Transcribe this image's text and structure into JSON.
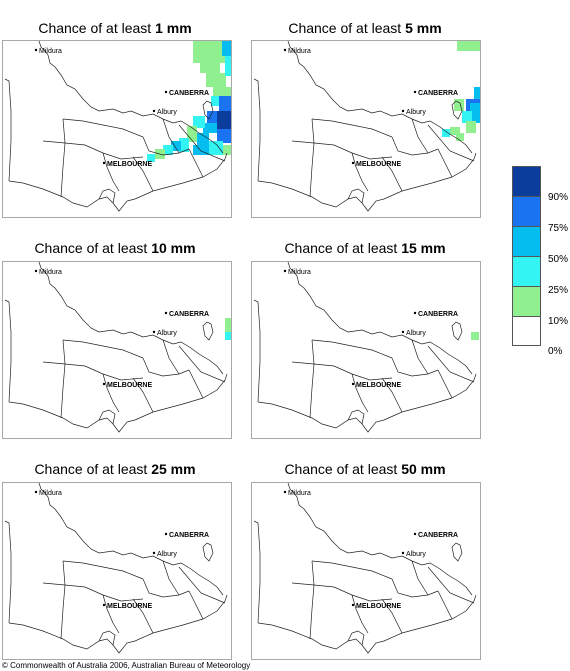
{
  "panel_prefix": "Chance of at least ",
  "panels": [
    {
      "threshold": "1 mm"
    },
    {
      "threshold": "5 mm"
    },
    {
      "threshold": "10 mm"
    },
    {
      "threshold": "15 mm"
    },
    {
      "threshold": "25 mm"
    },
    {
      "threshold": "50 mm"
    }
  ],
  "cities": {
    "mildura": "Mildura",
    "canberra": "CANBERRA",
    "albury": "Albury",
    "melbourne": "MELBOURNE"
  },
  "legend": {
    "colors": [
      "#0a3d9c",
      "#1a73f0",
      "#06bdf0",
      "#33f3f3",
      "#90f08f",
      "#ffffff"
    ],
    "labels": [
      "90%",
      "75%",
      "50%",
      "25%",
      "10%",
      "0%"
    ]
  },
  "footer": "© Commonwealth of Australia 2006, Australian Bureau of Meteorology"
}
